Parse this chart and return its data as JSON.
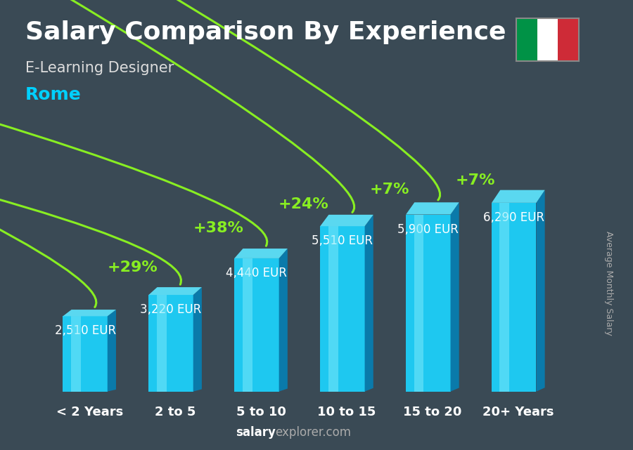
{
  "title": "Salary Comparison By Experience",
  "subtitle": "E-Learning Designer",
  "city": "Rome",
  "ylabel": "Average Monthly Salary",
  "categories": [
    "< 2 Years",
    "2 to 5",
    "5 to 10",
    "10 to 15",
    "15 to 20",
    "20+ Years"
  ],
  "values": [
    2510,
    3220,
    4440,
    5510,
    5900,
    6290
  ],
  "value_labels": [
    "2,510 EUR",
    "3,220 EUR",
    "4,440 EUR",
    "5,510 EUR",
    "5,900 EUR",
    "6,290 EUR"
  ],
  "pct_labels": [
    "+29%",
    "+38%",
    "+24%",
    "+7%",
    "+7%"
  ],
  "bar_front_color": "#1ec8f0",
  "bar_highlight_color": "#7ae8fa",
  "bar_dark_color": "#0a90c0",
  "bar_side_color": "#0a7aaa",
  "bar_top_color": "#5ad8f0",
  "background_color": "#3a4a55",
  "overlay_color": "#1a2530",
  "title_color": "#ffffff",
  "subtitle_color": "#dddddd",
  "city_color": "#00d0ff",
  "value_color": "#ffffff",
  "pct_color": "#88ee22",
  "arrow_color": "#88ee22",
  "xlabel_color": "#ffffff",
  "footer_salary_color": "#ffffff",
  "footer_explorer_color": "#aaaaaa",
  "ylabel_color": "#aaaaaa",
  "ylim": [
    0,
    7800
  ],
  "flag_green": "#009246",
  "flag_white": "#ffffff",
  "flag_red": "#ce2b37",
  "title_fontsize": 26,
  "subtitle_fontsize": 15,
  "city_fontsize": 18,
  "value_fontsize": 12,
  "pct_fontsize": 16,
  "cat_fontsize": 13,
  "ylabel_fontsize": 9,
  "footer_fontsize": 12
}
